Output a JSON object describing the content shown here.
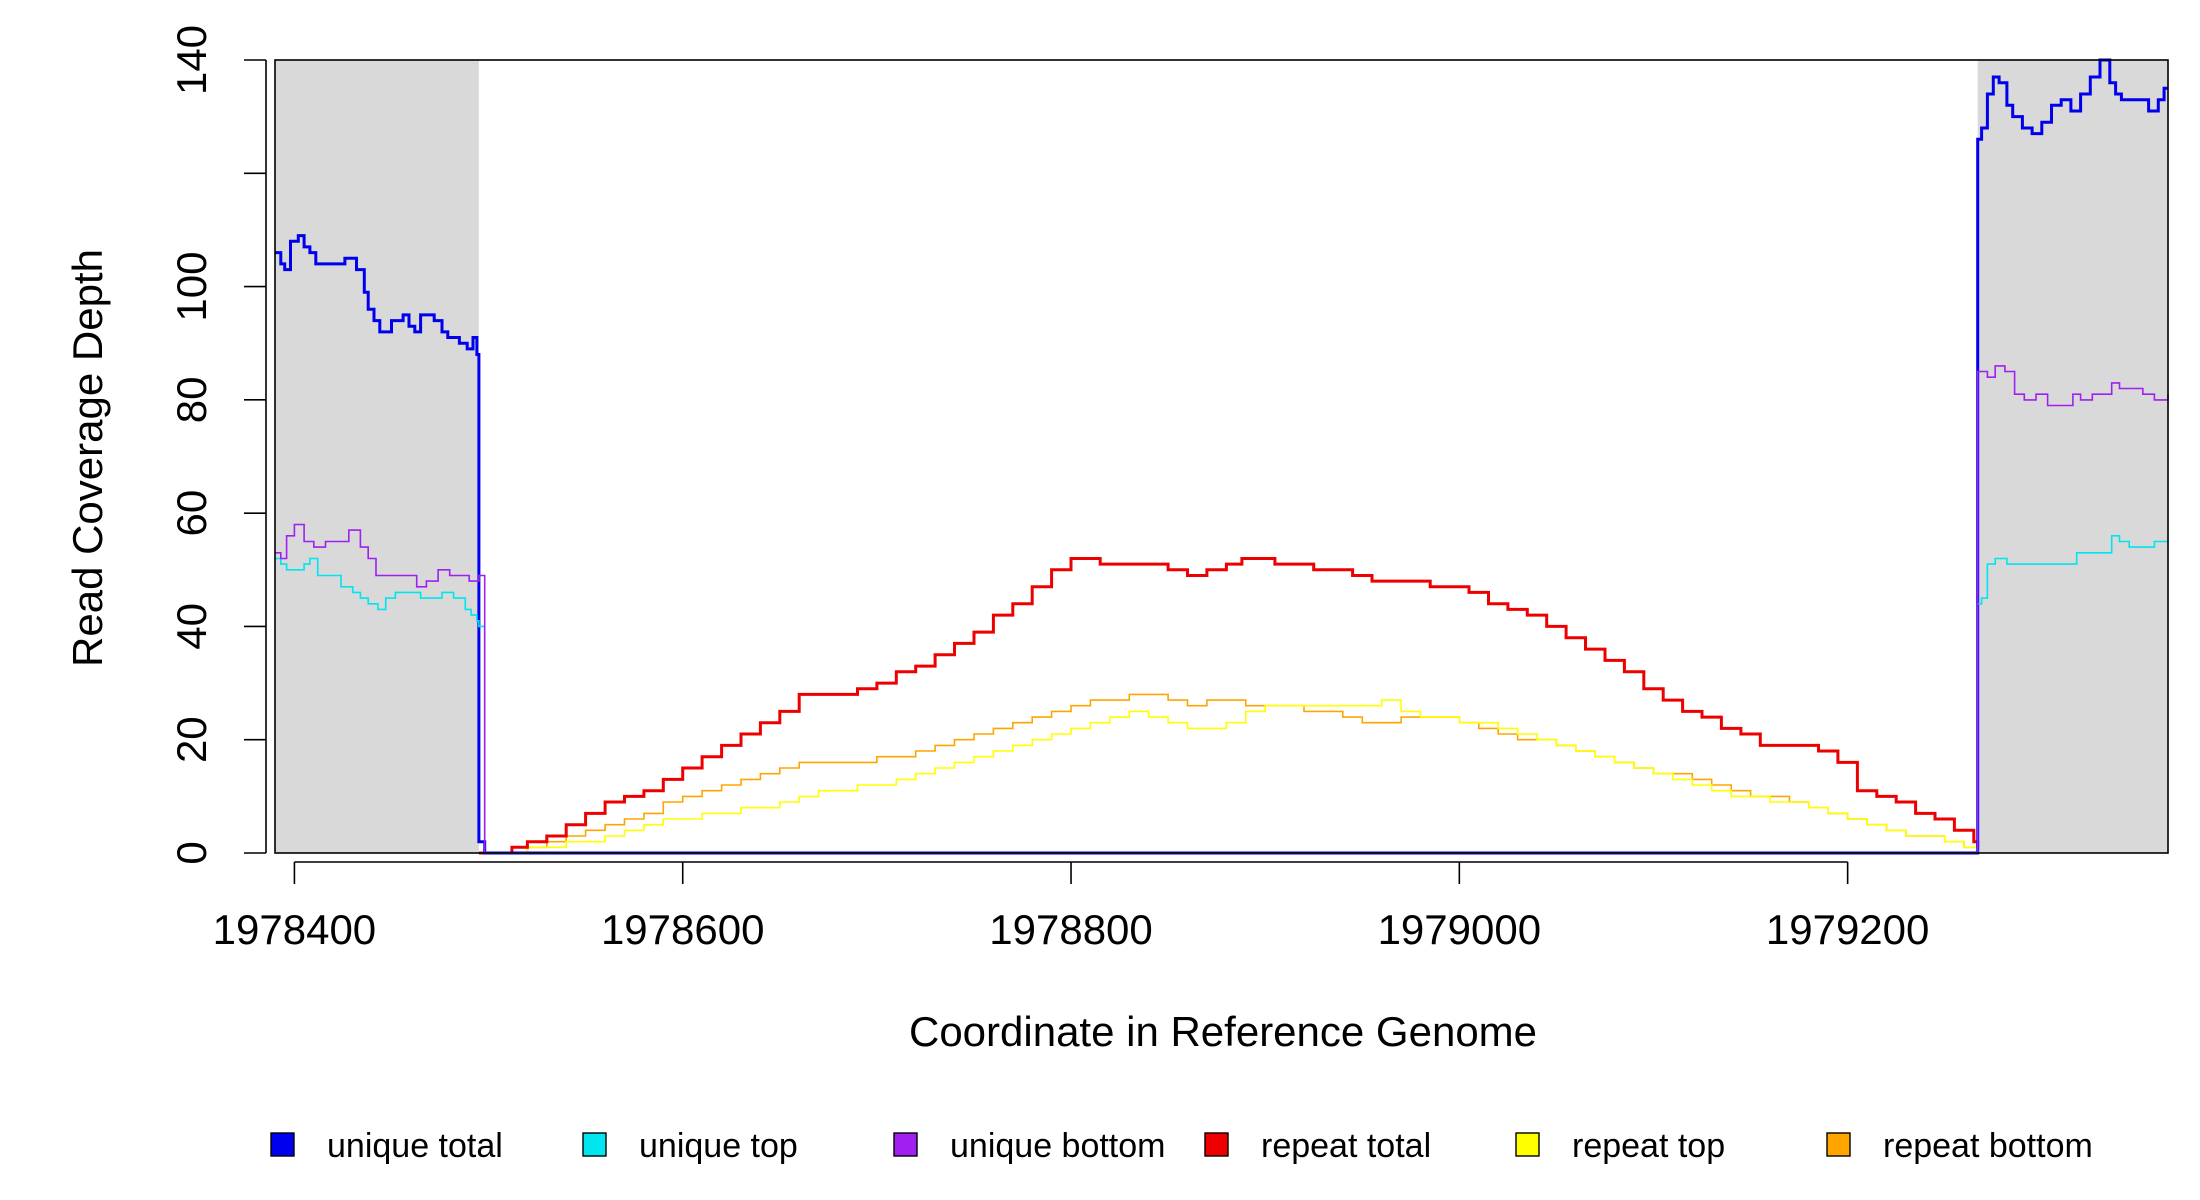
{
  "chart_data": {
    "type": "line",
    "title": "",
    "xlabel": "Coordinate in Reference Genome",
    "ylabel": "Read Coverage Depth",
    "xlim": [
      1978390,
      1979365
    ],
    "ylim": [
      0,
      140
    ],
    "x_ticks": [
      1978400,
      1978600,
      1978800,
      1979000,
      1979200
    ],
    "x_tick_labels": [
      "1978400",
      "1978600",
      "1978800",
      "1979000",
      "1979200"
    ],
    "y_ticks": [
      0,
      20,
      40,
      60,
      80,
      100,
      120,
      140
    ],
    "y_tick_labels": [
      "0",
      "20",
      "40",
      "60",
      "80",
      "100",
      "",
      "140"
    ],
    "grid": false,
    "shaded_regions": [
      {
        "x0": 1978390,
        "x1": 1978495,
        "color": "#d9d9d9"
      },
      {
        "x0": 1979267,
        "x1": 1979365,
        "color": "#d9d9d9"
      }
    ],
    "legend_position": "bottom",
    "series": [
      {
        "name": "unique total",
        "color": "#0000ee",
        "width": 3,
        "x": [
          1978390,
          1978393,
          1978395,
          1978398,
          1978402,
          1978405,
          1978408,
          1978411,
          1978414,
          1978420,
          1978426,
          1978432,
          1978436,
          1978438,
          1978441,
          1978444,
          1978450,
          1978456,
          1978459,
          1978462,
          1978465,
          1978468,
          1978472,
          1978476,
          1978479,
          1978482,
          1978485,
          1978489,
          1978492,
          1978494,
          1978495,
          1978498,
          1979265,
          1979267,
          1979269,
          1979272,
          1979275,
          1979278,
          1979282,
          1979285,
          1979290,
          1979295,
          1979300,
          1979305,
          1979310,
          1979315,
          1979320,
          1979325,
          1979330,
          1979335,
          1979338,
          1979341,
          1979345,
          1979350,
          1979355,
          1979360,
          1979363,
          1979365
        ],
        "y": [
          106,
          104,
          103,
          108,
          109,
          107,
          106,
          104,
          104,
          104,
          105,
          103,
          99,
          96,
          94,
          92,
          94,
          95,
          93,
          92,
          95,
          95,
          94,
          92,
          91,
          91,
          90,
          89,
          91,
          88,
          2,
          0,
          0,
          126,
          128,
          134,
          137,
          136,
          132,
          130,
          128,
          127,
          129,
          132,
          133,
          131,
          134,
          137,
          140,
          136,
          134,
          133,
          133,
          133,
          131,
          133,
          135,
          135
        ]
      },
      {
        "name": "unique top",
        "color": "#00e5ee",
        "width": 1.6,
        "x": [
          1978390,
          1978393,
          1978396,
          1978400,
          1978405,
          1978408,
          1978412,
          1978418,
          1978424,
          1978430,
          1978434,
          1978438,
          1978443,
          1978447,
          1978452,
          1978458,
          1978465,
          1978470,
          1978476,
          1978482,
          1978488,
          1978491,
          1978494,
          1978495,
          1978498,
          1979265,
          1979267,
          1979269,
          1979272,
          1979276,
          1979282,
          1979290,
          1979300,
          1979310,
          1979318,
          1979322,
          1979330,
          1979336,
          1979340,
          1979345,
          1979352,
          1979358,
          1979365
        ],
        "y": [
          52,
          51,
          50,
          50,
          51,
          52,
          49,
          49,
          47,
          46,
          45,
          44,
          43,
          45,
          46,
          46,
          45,
          45,
          46,
          45,
          43,
          42,
          41,
          40,
          0,
          0,
          44,
          45,
          51,
          52,
          51,
          51,
          51,
          51,
          53,
          53,
          53,
          56,
          55,
          54,
          54,
          55,
          55
        ]
      },
      {
        "name": "unique bottom",
        "color": "#a020f0",
        "width": 1.6,
        "x": [
          1978390,
          1978393,
          1978396,
          1978400,
          1978405,
          1978410,
          1978416,
          1978422,
          1978428,
          1978434,
          1978438,
          1978442,
          1978447,
          1978452,
          1978458,
          1978463,
          1978468,
          1978474,
          1978480,
          1978485,
          1978490,
          1978495,
          1978498,
          1979265,
          1979267,
          1979272,
          1979276,
          1979281,
          1979286,
          1979291,
          1979297,
          1979303,
          1979310,
          1979316,
          1979320,
          1979326,
          1979332,
          1979336,
          1979340,
          1979346,
          1979352,
          1979358,
          1979365
        ],
        "y": [
          53,
          52,
          56,
          58,
          55,
          54,
          55,
          55,
          57,
          54,
          52,
          49,
          49,
          49,
          49,
          47,
          48,
          50,
          49,
          49,
          48,
          49,
          0,
          0,
          85,
          84,
          86,
          85,
          81,
          80,
          81,
          79,
          79,
          81,
          80,
          81,
          81,
          83,
          82,
          82,
          81,
          80,
          81
        ]
      },
      {
        "name": "repeat total",
        "color": "#ee0000",
        "width": 3,
        "x": [
          1978495,
          1978508,
          1978512,
          1978520,
          1978530,
          1978540,
          1978550,
          1978560,
          1978570,
          1978580,
          1978590,
          1978600,
          1978610,
          1978620,
          1978630,
          1978640,
          1978650,
          1978660,
          1978670,
          1978680,
          1978690,
          1978700,
          1978710,
          1978720,
          1978730,
          1978740,
          1978750,
          1978760,
          1978770,
          1978780,
          1978790,
          1978800,
          1978810,
          1978815,
          1978820,
          1978830,
          1978840,
          1978850,
          1978860,
          1978870,
          1978880,
          1978888,
          1978895,
          1978905,
          1978915,
          1978925,
          1978935,
          1978945,
          1978955,
          1978965,
          1978975,
          1978985,
          1978995,
          1979005,
          1979015,
          1979025,
          1979035,
          1979045,
          1979055,
          1979065,
          1979075,
          1979085,
          1979095,
          1979105,
          1979115,
          1979125,
          1979135,
          1979145,
          1979155,
          1979165,
          1979175,
          1979185,
          1979195,
          1979205,
          1979215,
          1979225,
          1979235,
          1979245,
          1979255,
          1979265,
          1979267
        ],
        "y": [
          0,
          0,
          1,
          2,
          3,
          5,
          7,
          9,
          10,
          11,
          13,
          15,
          17,
          19,
          21,
          23,
          25,
          28,
          28,
          28,
          29,
          30,
          32,
          33,
          35,
          37,
          39,
          42,
          44,
          47,
          50,
          52,
          52,
          51,
          51,
          51,
          51,
          50,
          49,
          50,
          51,
          52,
          52,
          51,
          51,
          50,
          50,
          49,
          48,
          48,
          48,
          47,
          47,
          46,
          44,
          43,
          42,
          40,
          38,
          36,
          34,
          32,
          29,
          27,
          25,
          24,
          22,
          21,
          19,
          19,
          19,
          18,
          16,
          11,
          10,
          9,
          7,
          6,
          4,
          2,
          1
        ]
      },
      {
        "name": "repeat top",
        "color": "#ffff00",
        "width": 1.6,
        "x": [
          1978495,
          1978510,
          1978520,
          1978530,
          1978540,
          1978550,
          1978560,
          1978570,
          1978580,
          1978590,
          1978600,
          1978610,
          1978620,
          1978630,
          1978640,
          1978650,
          1978660,
          1978670,
          1978680,
          1978690,
          1978700,
          1978710,
          1978720,
          1978730,
          1978740,
          1978750,
          1978760,
          1978770,
          1978780,
          1978790,
          1978800,
          1978810,
          1978820,
          1978830,
          1978840,
          1978850,
          1978860,
          1978870,
          1978880,
          1978890,
          1978900,
          1978910,
          1978920,
          1978930,
          1978940,
          1978950,
          1978960,
          1978970,
          1978980,
          1978990,
          1979000,
          1979010,
          1979020,
          1979030,
          1979040,
          1979050,
          1979060,
          1979070,
          1979080,
          1979090,
          1979100,
          1979110,
          1979120,
          1979130,
          1979140,
          1979150,
          1979160,
          1979170,
          1979180,
          1979190,
          1979200,
          1979210,
          1979220,
          1979230,
          1979240,
          1979250,
          1979260,
          1979265,
          1979267
        ],
        "y": [
          0,
          0,
          1,
          1,
          2,
          2,
          3,
          4,
          5,
          6,
          6,
          7,
          7,
          8,
          8,
          9,
          10,
          11,
          11,
          12,
          12,
          13,
          14,
          15,
          16,
          17,
          18,
          19,
          20,
          21,
          22,
          23,
          24,
          25,
          24,
          23,
          22,
          22,
          23,
          25,
          26,
          26,
          26,
          26,
          26,
          26,
          27,
          25,
          24,
          24,
          23,
          23,
          22,
          21,
          20,
          19,
          18,
          17,
          16,
          15,
          14,
          13,
          12,
          11,
          10,
          10,
          9,
          9,
          8,
          7,
          6,
          5,
          4,
          3,
          3,
          2,
          1,
          1,
          0
        ]
      },
      {
        "name": "repeat bottom",
        "color": "#ffa500",
        "width": 1.6,
        "x": [
          1978495,
          1978510,
          1978520,
          1978530,
          1978540,
          1978550,
          1978560,
          1978570,
          1978580,
          1978590,
          1978600,
          1978610,
          1978620,
          1978630,
          1978640,
          1978650,
          1978660,
          1978670,
          1978680,
          1978690,
          1978700,
          1978710,
          1978720,
          1978730,
          1978740,
          1978750,
          1978760,
          1978770,
          1978780,
          1978790,
          1978800,
          1978810,
          1978820,
          1978830,
          1978840,
          1978850,
          1978860,
          1978870,
          1978880,
          1978890,
          1978900,
          1978910,
          1978920,
          1978930,
          1978940,
          1978950,
          1978960,
          1978970,
          1978980,
          1978990,
          1979000,
          1979010,
          1979020,
          1979030,
          1979040,
          1979050,
          1979060,
          1979070,
          1979080,
          1979090,
          1979100,
          1979110,
          1979120,
          1979130,
          1979140,
          1979150,
          1979160,
          1979170,
          1979180,
          1979190,
          1979200,
          1979210,
          1979220,
          1979230,
          1979240,
          1979250,
          1979260,
          1979265,
          1979267
        ],
        "y": [
          0,
          0,
          1,
          2,
          3,
          4,
          5,
          6,
          7,
          9,
          10,
          11,
          12,
          13,
          14,
          15,
          16,
          16,
          16,
          16,
          17,
          17,
          18,
          19,
          20,
          21,
          22,
          23,
          24,
          25,
          26,
          27,
          27,
          28,
          28,
          27,
          26,
          27,
          27,
          26,
          26,
          26,
          25,
          25,
          24,
          23,
          23,
          24,
          24,
          24,
          23,
          22,
          21,
          20,
          20,
          19,
          18,
          17,
          16,
          15,
          14,
          14,
          13,
          12,
          11,
          10,
          10,
          9,
          8,
          7,
          6,
          5,
          4,
          3,
          3,
          2,
          1,
          1,
          0
        ]
      }
    ]
  }
}
